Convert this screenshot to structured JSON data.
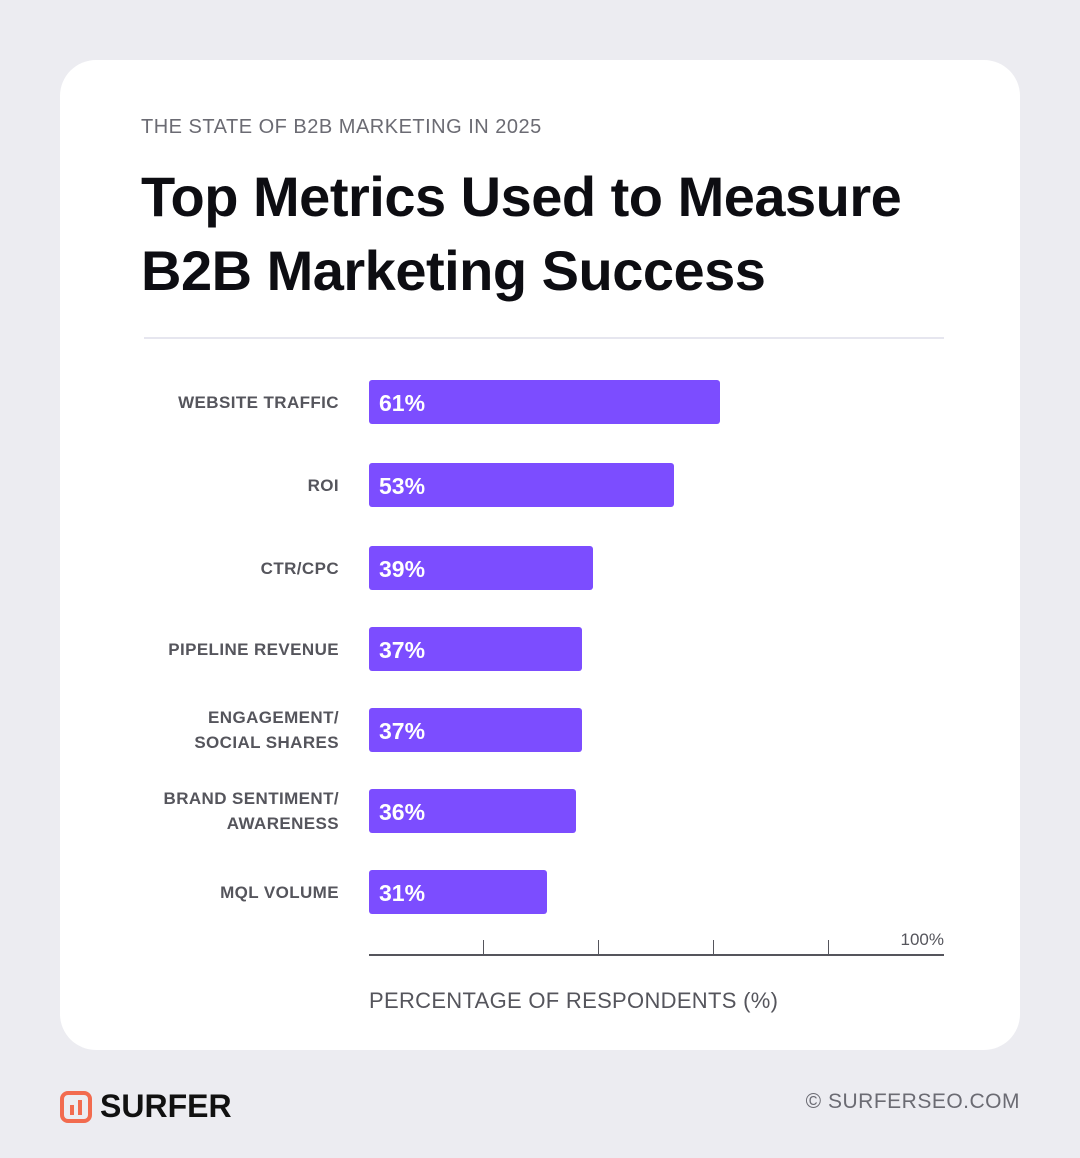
{
  "eyebrow": "THE STATE OF B2B MARKETING IN 2025",
  "title": "Top Metrics Used to Measure B2B Marketing Success",
  "colors": {
    "bar": "#7c4dff",
    "logo": "#f26b4f"
  },
  "chart_data": {
    "type": "bar",
    "orientation": "horizontal",
    "categories": [
      "WEBSITE TRAFFIC",
      "ROI",
      "CTR/CPC",
      "PIPELINE REVENUE",
      "ENGAGEMENT/ SOCIAL SHARES",
      "BRAND SENTIMENT/ AWARENESS",
      "MQL VOLUME"
    ],
    "values": [
      61,
      53,
      39,
      37,
      37,
      36,
      31
    ],
    "data_labels": [
      "61%",
      "53%",
      "39%",
      "37%",
      "37%",
      "36%",
      "31%"
    ],
    "xlabel": "PERCENTAGE OF RESPONDENTS (%)",
    "xlim": [
      0,
      100
    ],
    "x_tick_max_label": "100%",
    "x_ticks": [
      20,
      40,
      60,
      80
    ]
  },
  "footer": {
    "brand": "SURFER",
    "site": "© SURFERSEO.COM"
  }
}
